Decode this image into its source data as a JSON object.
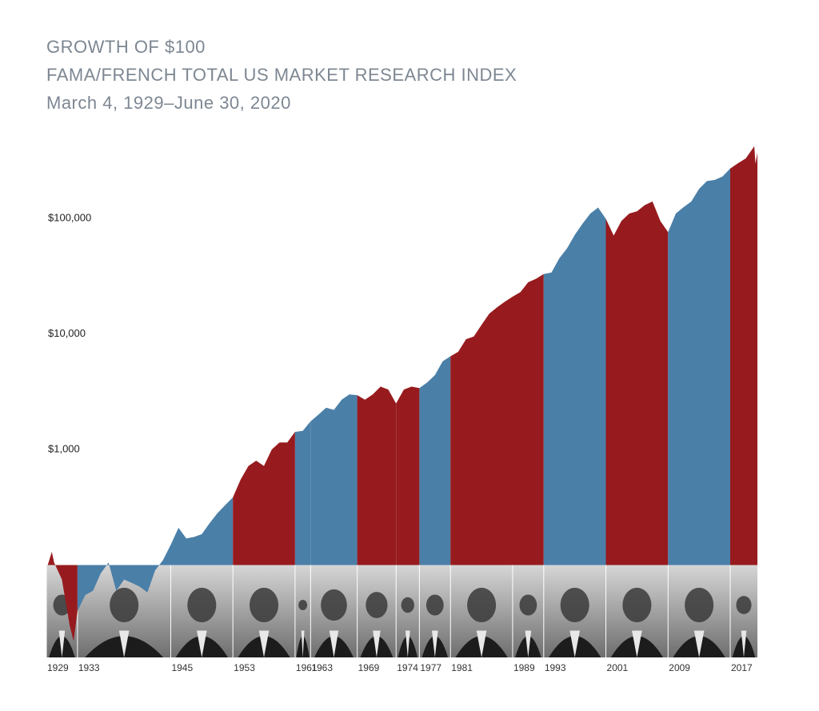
{
  "chart_data": {
    "type": "area",
    "title": "GROWTH OF $100",
    "subtitle": "FAMA/FRENCH TOTAL US MARKET RESEARCH INDEX",
    "date_range": "March 4, 1929–June 30, 2020",
    "log_scale": true,
    "ylim": [
      10,
      1000000
    ],
    "yticks": [
      {
        "value": 1000,
        "label": "$1,000"
      },
      {
        "value": 10000,
        "label": "$10,000"
      },
      {
        "value": 100000,
        "label": "$100,000"
      }
    ],
    "xlim": [
      1929,
      2020.5
    ],
    "xticks": [
      1929,
      1933,
      1945,
      1953,
      1961,
      1963,
      1969,
      1974,
      1977,
      1981,
      1989,
      1993,
      2001,
      2009,
      2017
    ],
    "term_colors": [
      "#971b1e",
      "#4a7fa8",
      "#4a7fa8",
      "#971b1e",
      "#4a7fa8",
      "#4a7fa8",
      "#971b1e",
      "#971b1e",
      "#4a7fa8",
      "#971b1e",
      "#971b1e",
      "#4a7fa8",
      "#971b1e",
      "#4a7fa8",
      "#971b1e"
    ],
    "x": [
      1929.17,
      1929.7,
      1930,
      1931,
      1932,
      1932.5,
      1933,
      1934,
      1935,
      1936,
      1937,
      1938,
      1939,
      1940,
      1941,
      1942,
      1943,
      1944,
      1945,
      1946,
      1947,
      1948,
      1949,
      1950,
      1951,
      1952,
      1953,
      1954,
      1955,
      1956,
      1957,
      1958,
      1959,
      1960,
      1961,
      1962,
      1963,
      1964,
      1965,
      1966,
      1967,
      1968,
      1969,
      1970,
      1971,
      1972,
      1973,
      1974,
      1975,
      1976,
      1977,
      1978,
      1979,
      1980,
      1981,
      1982,
      1983,
      1984,
      1985,
      1986,
      1987,
      1988,
      1989,
      1990,
      1991,
      1992,
      1993,
      1994,
      1995,
      1996,
      1997,
      1998,
      1999,
      2000,
      2001,
      2002,
      2003,
      2004,
      2005,
      2006,
      2007,
      2008,
      2009,
      2010,
      2011,
      2012,
      2013,
      2014,
      2015,
      2016,
      2017,
      2018,
      2019,
      2020.1,
      2020.25,
      2020.5
    ],
    "values": [
      100,
      130,
      105,
      75,
      30,
      22,
      40,
      55,
      60,
      85,
      105,
      60,
      75,
      70,
      65,
      58,
      90,
      110,
      150,
      210,
      170,
      175,
      185,
      230,
      280,
      330,
      385,
      550,
      720,
      800,
      720,
      1000,
      1150,
      1150,
      1420,
      1450,
      1750,
      2000,
      2300,
      2200,
      2700,
      3000,
      2950,
      2700,
      3000,
      3500,
      3300,
      2500,
      3300,
      3500,
      3400,
      3800,
      4400,
      5800,
      6400,
      7000,
      9000,
      9500,
      12000,
      15000,
      17000,
      19000,
      21000,
      23000,
      28000,
      30000,
      33000,
      34000,
      45000,
      55000,
      72000,
      90000,
      110000,
      124000,
      99000,
      71000,
      95000,
      110000,
      115000,
      130000,
      140000,
      95000,
      76000,
      110000,
      125000,
      140000,
      180000,
      210000,
      215000,
      230000,
      270000,
      300000,
      330000,
      420000,
      296000,
      370000
    ]
  }
}
